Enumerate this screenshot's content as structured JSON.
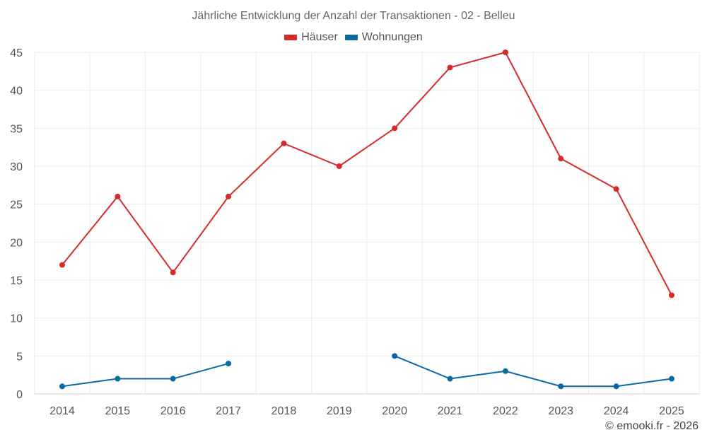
{
  "chart_data": {
    "type": "line",
    "title": "Jährliche Entwicklung der Anzahl der Transaktionen - 02 - Belleu",
    "categories": [
      "2014",
      "2015",
      "2016",
      "2017",
      "2018",
      "2019",
      "2020",
      "2021",
      "2022",
      "2023",
      "2024",
      "2025"
    ],
    "series": [
      {
        "name": "Häuser",
        "color": "#d52b2b",
        "values": [
          17,
          26,
          16,
          26,
          33,
          30,
          35,
          43,
          45,
          31,
          27,
          13
        ]
      },
      {
        "name": "Wohnungen",
        "color": "#0b6aa1",
        "values": [
          1,
          2,
          2,
          4,
          null,
          null,
          5,
          2,
          3,
          1,
          1,
          2
        ]
      }
    ],
    "ylim": [
      0,
      45
    ],
    "yticks": [
      0,
      5,
      10,
      15,
      20,
      25,
      30,
      35,
      40,
      45
    ],
    "xlabel": "",
    "ylabel": "",
    "grid": true,
    "legend_position": "top-center"
  },
  "credit": "© emooki.fr - 2026"
}
